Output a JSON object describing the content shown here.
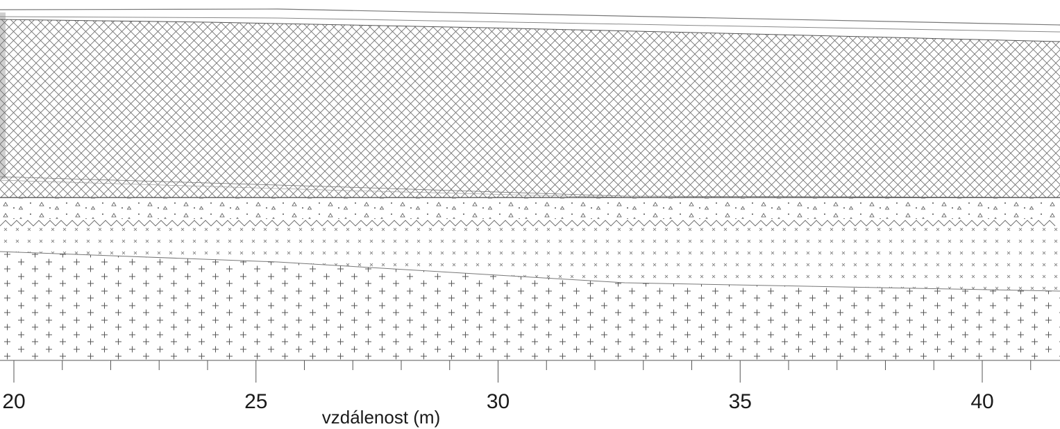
{
  "figure": {
    "axis": {
      "label": "vzdálenost (m)",
      "ticks": [
        {
          "value": 20,
          "label": "20"
        },
        {
          "value": 25,
          "label": "25"
        },
        {
          "value": 30,
          "label": "30"
        },
        {
          "value": 35,
          "label": "35"
        },
        {
          "value": 40,
          "label": "40"
        }
      ],
      "range": [
        20,
        41.6
      ],
      "minor_step": 1
    },
    "layers": [
      {
        "id": "layer-1",
        "pattern": "cross-hatch",
        "color": "#555555"
      },
      {
        "id": "layer-2",
        "pattern": "triangle-stipple",
        "color": "#444444"
      },
      {
        "id": "layer-3",
        "pattern": "small-crosses",
        "color": "#777777"
      },
      {
        "id": "layer-4",
        "pattern": "plus-signs",
        "color": "#444444"
      }
    ]
  }
}
